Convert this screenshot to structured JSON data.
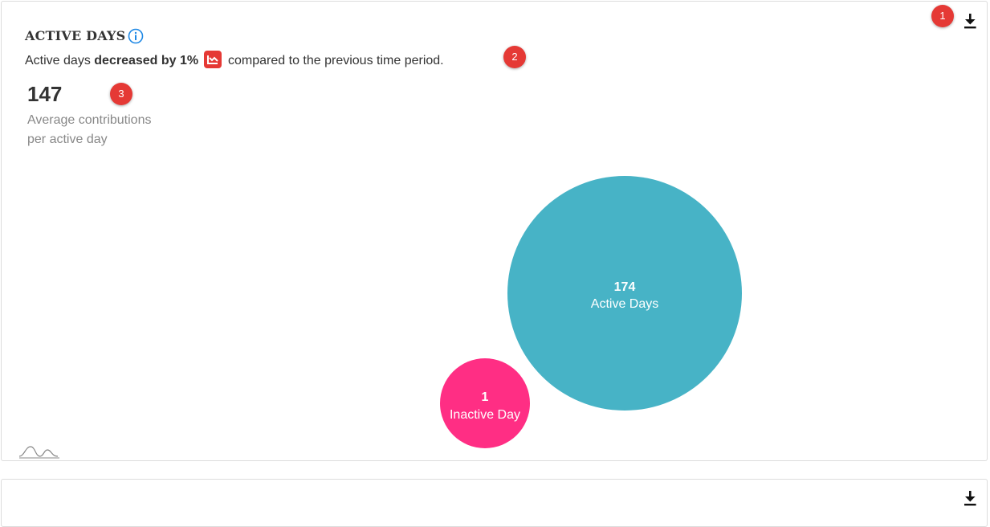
{
  "card": {
    "title": "ACTIVE DAYS",
    "subtitle_pre": "Active days ",
    "subtitle_bold": "decreased by 1%",
    "subtitle_post": " compared to the previous time period.",
    "metric_value": "147",
    "metric_caption": "Average contributions per active day"
  },
  "annotations": [
    "1",
    "2",
    "3"
  ],
  "icons": {
    "info": "info-icon",
    "trend": "trend-down-icon",
    "download": "download-icon",
    "watermark": "chart-logo-icon"
  },
  "colors": {
    "active": "#47b3c6",
    "inactive": "#ff2e84",
    "marker": "#e53935",
    "trend_bg": "#e53935",
    "info": "#1e88e5"
  },
  "chart_data": {
    "type": "bubble",
    "series": [
      {
        "label": "Active Days",
        "value": 174
      },
      {
        "label": "Inactive Day",
        "value": 1
      }
    ]
  }
}
